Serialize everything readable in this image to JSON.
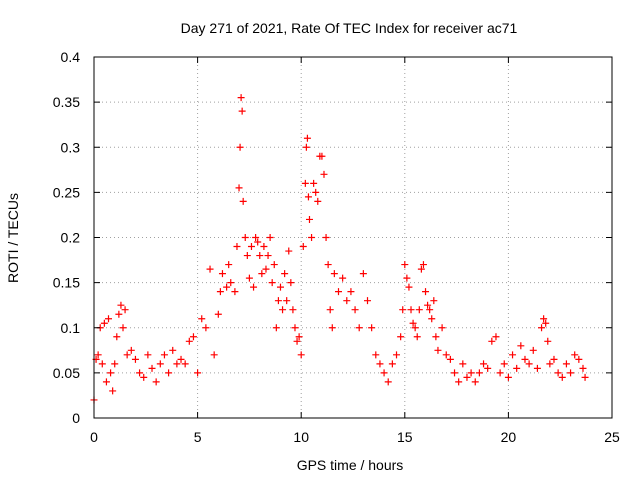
{
  "chart_data": {
    "type": "scatter",
    "title": "Day 271 of 2021, Rate Of TEC Index for receiver ac71",
    "xlabel": "GPS time / hours",
    "ylabel": "ROTI / TECUs",
    "xlim": [
      0,
      25
    ],
    "ylim": [
      0,
      0.4
    ],
    "xticks": [
      0,
      5,
      10,
      15,
      20,
      25
    ],
    "xtick_labels": [
      "0",
      "5",
      "10",
      "15",
      "20",
      "25"
    ],
    "yticks": [
      0,
      0.05,
      0.1,
      0.15,
      0.2,
      0.25,
      0.3,
      0.35,
      0.4
    ],
    "ytick_labels": [
      "0",
      "0.05",
      "0.1",
      "0.15",
      "0.2",
      "0.25",
      "0.3",
      "0.35",
      "0.4"
    ],
    "grid": true,
    "marker": "+",
    "marker_color": "#ff0000",
    "series": [
      {
        "points": [
          [
            0.0,
            0.02
          ],
          [
            0.1,
            0.065
          ],
          [
            0.2,
            0.07
          ],
          [
            0.3,
            0.1
          ],
          [
            0.4,
            0.06
          ],
          [
            0.5,
            0.105
          ],
          [
            0.6,
            0.04
          ],
          [
            0.7,
            0.11
          ],
          [
            0.8,
            0.05
          ],
          [
            0.9,
            0.03
          ],
          [
            1.0,
            0.06
          ],
          [
            1.1,
            0.09
          ],
          [
            1.2,
            0.115
          ],
          [
            1.3,
            0.125
          ],
          [
            1.4,
            0.1
          ],
          [
            1.5,
            0.12
          ],
          [
            1.6,
            0.07
          ],
          [
            1.8,
            0.075
          ],
          [
            2.0,
            0.065
          ],
          [
            2.2,
            0.05
          ],
          [
            2.4,
            0.045
          ],
          [
            2.6,
            0.07
          ],
          [
            2.8,
            0.055
          ],
          [
            3.0,
            0.04
          ],
          [
            3.2,
            0.06
          ],
          [
            3.4,
            0.07
          ],
          [
            3.6,
            0.05
          ],
          [
            3.8,
            0.075
          ],
          [
            4.0,
            0.06
          ],
          [
            4.2,
            0.065
          ],
          [
            4.4,
            0.06
          ],
          [
            4.6,
            0.085
          ],
          [
            4.8,
            0.09
          ],
          [
            5.0,
            0.05
          ],
          [
            5.2,
            0.11
          ],
          [
            5.4,
            0.1
          ],
          [
            5.6,
            0.165
          ],
          [
            5.8,
            0.07
          ],
          [
            6.0,
            0.115
          ],
          [
            6.1,
            0.14
          ],
          [
            6.2,
            0.16
          ],
          [
            6.4,
            0.145
          ],
          [
            6.5,
            0.17
          ],
          [
            6.6,
            0.15
          ],
          [
            6.8,
            0.14
          ],
          [
            6.9,
            0.19
          ],
          [
            7.0,
            0.255
          ],
          [
            7.05,
            0.3
          ],
          [
            7.1,
            0.355
          ],
          [
            7.15,
            0.34
          ],
          [
            7.2,
            0.24
          ],
          [
            7.3,
            0.2
          ],
          [
            7.4,
            0.18
          ],
          [
            7.5,
            0.155
          ],
          [
            7.6,
            0.19
          ],
          [
            7.7,
            0.145
          ],
          [
            7.8,
            0.2
          ],
          [
            7.9,
            0.195
          ],
          [
            8.0,
            0.18
          ],
          [
            8.1,
            0.16
          ],
          [
            8.2,
            0.19
          ],
          [
            8.3,
            0.165
          ],
          [
            8.4,
            0.18
          ],
          [
            8.5,
            0.2
          ],
          [
            8.6,
            0.15
          ],
          [
            8.7,
            0.17
          ],
          [
            8.8,
            0.1
          ],
          [
            8.9,
            0.13
          ],
          [
            9.0,
            0.145
          ],
          [
            9.1,
            0.12
          ],
          [
            9.2,
            0.16
          ],
          [
            9.3,
            0.13
          ],
          [
            9.4,
            0.185
          ],
          [
            9.5,
            0.15
          ],
          [
            9.6,
            0.12
          ],
          [
            9.7,
            0.1
          ],
          [
            9.8,
            0.085
          ],
          [
            9.9,
            0.09
          ],
          [
            10.0,
            0.07
          ],
          [
            10.1,
            0.19
          ],
          [
            10.2,
            0.26
          ],
          [
            10.25,
            0.3
          ],
          [
            10.3,
            0.31
          ],
          [
            10.35,
            0.245
          ],
          [
            10.4,
            0.22
          ],
          [
            10.5,
            0.2
          ],
          [
            10.6,
            0.26
          ],
          [
            10.7,
            0.25
          ],
          [
            10.8,
            0.24
          ],
          [
            10.9,
            0.29
          ],
          [
            11.0,
            0.29
          ],
          [
            11.1,
            0.27
          ],
          [
            11.2,
            0.2
          ],
          [
            11.3,
            0.17
          ],
          [
            11.4,
            0.12
          ],
          [
            11.5,
            0.1
          ],
          [
            11.6,
            0.16
          ],
          [
            11.8,
            0.14
          ],
          [
            12.0,
            0.155
          ],
          [
            12.2,
            0.13
          ],
          [
            12.4,
            0.14
          ],
          [
            12.6,
            0.12
          ],
          [
            12.8,
            0.1
          ],
          [
            13.0,
            0.16
          ],
          [
            13.2,
            0.13
          ],
          [
            13.4,
            0.1
          ],
          [
            13.6,
            0.07
          ],
          [
            13.8,
            0.06
          ],
          [
            14.0,
            0.05
          ],
          [
            14.2,
            0.04
          ],
          [
            14.4,
            0.06
          ],
          [
            14.6,
            0.07
          ],
          [
            14.8,
            0.09
          ],
          [
            14.9,
            0.12
          ],
          [
            15.0,
            0.17
          ],
          [
            15.1,
            0.155
          ],
          [
            15.2,
            0.145
          ],
          [
            15.3,
            0.12
          ],
          [
            15.4,
            0.105
          ],
          [
            15.5,
            0.1
          ],
          [
            15.6,
            0.09
          ],
          [
            15.7,
            0.12
          ],
          [
            15.8,
            0.165
          ],
          [
            15.9,
            0.17
          ],
          [
            16.0,
            0.14
          ],
          [
            16.1,
            0.125
          ],
          [
            16.2,
            0.12
          ],
          [
            16.3,
            0.11
          ],
          [
            16.4,
            0.13
          ],
          [
            16.5,
            0.09
          ],
          [
            16.6,
            0.075
          ],
          [
            16.8,
            0.1
          ],
          [
            17.0,
            0.07
          ],
          [
            17.2,
            0.065
          ],
          [
            17.4,
            0.05
          ],
          [
            17.6,
            0.04
          ],
          [
            17.8,
            0.06
          ],
          [
            18.0,
            0.045
          ],
          [
            18.2,
            0.05
          ],
          [
            18.4,
            0.04
          ],
          [
            18.6,
            0.05
          ],
          [
            18.8,
            0.06
          ],
          [
            19.0,
            0.055
          ],
          [
            19.2,
            0.085
          ],
          [
            19.4,
            0.09
          ],
          [
            19.6,
            0.05
          ],
          [
            19.8,
            0.06
          ],
          [
            20.0,
            0.045
          ],
          [
            20.2,
            0.07
          ],
          [
            20.4,
            0.055
          ],
          [
            20.6,
            0.08
          ],
          [
            20.8,
            0.065
          ],
          [
            21.0,
            0.06
          ],
          [
            21.2,
            0.075
          ],
          [
            21.4,
            0.055
          ],
          [
            21.6,
            0.1
          ],
          [
            21.7,
            0.11
          ],
          [
            21.8,
            0.105
          ],
          [
            21.9,
            0.085
          ],
          [
            22.0,
            0.06
          ],
          [
            22.2,
            0.065
          ],
          [
            22.4,
            0.05
          ],
          [
            22.6,
            0.045
          ],
          [
            22.8,
            0.06
          ],
          [
            23.0,
            0.05
          ],
          [
            23.2,
            0.07
          ],
          [
            23.4,
            0.065
          ],
          [
            23.6,
            0.055
          ],
          [
            23.7,
            0.045
          ]
        ]
      }
    ]
  }
}
